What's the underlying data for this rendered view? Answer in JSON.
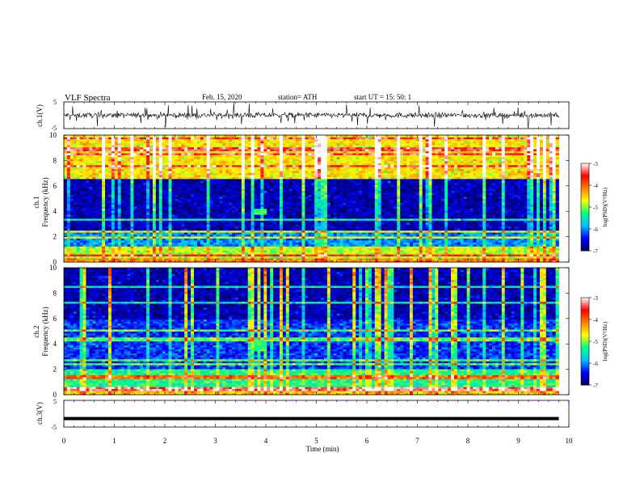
{
  "header": {
    "title": "VLF  Spectra",
    "date": "Feb. 15, 2020",
    "station": "station= ATH",
    "start": "start  UT  =    15: 50: 1"
  },
  "chart_data": [
    {
      "type": "line",
      "name": "ch1-waveform",
      "ylabel": "ch.1(V)",
      "ylim": [
        -5,
        5
      ],
      "yticks": [
        "5",
        "-5"
      ],
      "xlim": [
        0,
        10
      ],
      "mean_level": 0,
      "approx_noise_amplitude": 1,
      "end_time_min": 9.8
    },
    {
      "type": "heatmap",
      "name": "ch1-spectrogram",
      "ylabel": "Frequency  (kHz)",
      "ylabel_prefix": "ch.1",
      "ylim": [
        0,
        10
      ],
      "yticks": [
        "0",
        "2",
        "4",
        "6",
        "8",
        "10"
      ],
      "xlim": [
        0,
        10
      ],
      "end_time_min": 9.8,
      "colorbar": {
        "label": "log(PSD)(V²/Hz)",
        "range": [
          -7,
          -3
        ],
        "ticks": [
          "-3",
          "-4",
          "-5",
          "-6",
          "-7"
        ]
      },
      "background_level_by_band": [
        {
          "from_khz": 0,
          "to_khz": 0.3,
          "level": -4.2
        },
        {
          "from_khz": 0.3,
          "to_khz": 1.0,
          "level": -4.9
        },
        {
          "from_khz": 1.0,
          "to_khz": 2.5,
          "level": -6.0
        },
        {
          "from_khz": 2.5,
          "to_khz": 6.5,
          "level": -6.7
        },
        {
          "from_khz": 6.5,
          "to_khz": 10,
          "level": -4.6
        }
      ],
      "feature_patch": {
        "t_from_min": 3.75,
        "t_to_min": 4.05,
        "f_from_khz": 3.7,
        "f_to_khz": 4.2,
        "level": -5.2
      }
    },
    {
      "type": "heatmap",
      "name": "ch2-spectrogram",
      "ylabel": "Frequency  (kHz)",
      "ylabel_prefix": "ch.2",
      "ylim": [
        0,
        10
      ],
      "yticks": [
        "0",
        "2",
        "4",
        "6",
        "8",
        "10"
      ],
      "xlim": [
        0,
        10
      ],
      "end_time_min": 9.8,
      "colorbar": {
        "label": "log(PSD)(V²/Hz)",
        "range": [
          -7,
          -3
        ],
        "ticks": [
          "-3",
          "-4",
          "-5",
          "-6",
          "-7"
        ]
      },
      "background_level_by_band": [
        {
          "from_khz": 0,
          "to_khz": 0.6,
          "level": -4.5
        },
        {
          "from_khz": 0.6,
          "to_khz": 2.0,
          "level": -5.3
        },
        {
          "from_khz": 2.0,
          "to_khz": 6.0,
          "level": -6.3
        },
        {
          "from_khz": 6.0,
          "to_khz": 10,
          "level": -6.7
        }
      ],
      "feature_patch": {
        "t_from_min": 3.75,
        "t_to_min": 4.05,
        "f_from_khz": 3.5,
        "f_to_khz": 4.3,
        "level": -5.2
      }
    },
    {
      "type": "line",
      "name": "ch3-waveform",
      "ylabel": "ch.3(V)",
      "ylim": [
        -5,
        5
      ],
      "yticks": [
        "5",
        "-5"
      ],
      "xlim": [
        0,
        10
      ],
      "mean_level": -1.8,
      "end_time_min": 9.8
    }
  ],
  "xaxis": {
    "label": "Time  (min)",
    "ticks": [
      "0",
      "1",
      "2",
      "3",
      "4",
      "5",
      "6",
      "7",
      "8",
      "9",
      "10"
    ]
  },
  "colors": {
    "colormap": [
      "#000060",
      "#0000ff",
      "#00c0ff",
      "#00ff80",
      "#ffff00",
      "#ff8000",
      "#ff0000",
      "#ffffff"
    ],
    "waveform": "#000000"
  }
}
